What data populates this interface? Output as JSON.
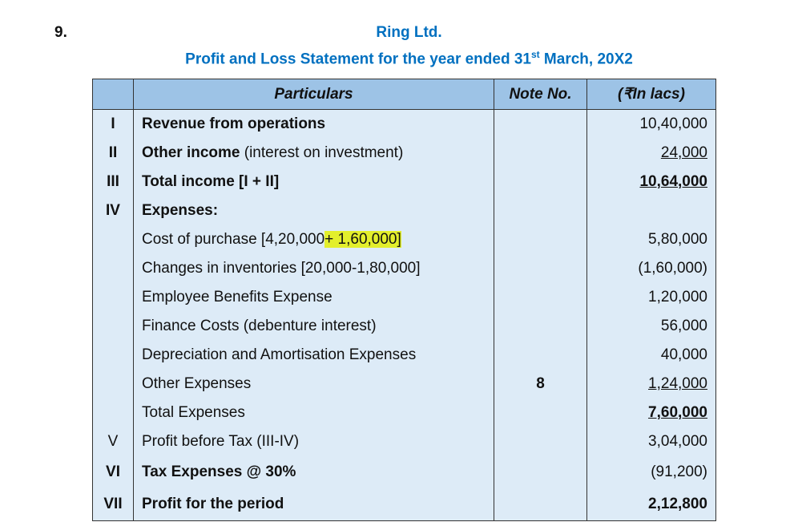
{
  "header": {
    "number": "9.",
    "company": "Ring Ltd.",
    "title": {
      "text": "Profit and Loss Statement for the year ended 31",
      "superscript": "st",
      "rest": " March, 20X2"
    }
  },
  "table": {
    "columns": [
      "Particulars",
      "Note No.",
      "(₹In lacs)"
    ],
    "rows": [
      {
        "num": "I",
        "particulars": "Revenue from operations",
        "amount": "10,40,000"
      },
      {
        "num": "II",
        "particulars": "Other income",
        "detail": " (interest on investment)",
        "amount": "24,000"
      },
      {
        "num": "III",
        "particulars": "Total income [I + II]",
        "amount": "10,64,000"
      },
      {
        "num": "IV",
        "particulars": "Expenses:"
      },
      {
        "particulars": "Cost of purchase [4,20,000",
        "highlight": "+ 1,60,000]",
        "amount": "5,80,000"
      },
      {
        "particulars": "Changes in inventories [20,000-1,80,000]",
        "amount": "(1,60,000)"
      },
      {
        "particulars": "Employee Benefits Expense",
        "amount": "1,20,000"
      },
      {
        "particulars": "Finance Costs (debenture interest)",
        "amount": "56,000"
      },
      {
        "particulars": "Depreciation and Amortisation Expenses",
        "amount": "40,000"
      },
      {
        "particulars": "Other Expenses",
        "note": "8",
        "amount": "1,24,000"
      },
      {
        "particulars": "Total Expenses",
        "amount": "7,60,000"
      },
      {
        "num": "V",
        "particulars": "Profit before Tax (III-IV)",
        "amount": "3,04,000"
      },
      {
        "num": "VI",
        "particulars": "Tax Expenses @ 30%",
        "amount": "(91,200)"
      },
      {
        "num": "VII",
        "particulars": "Profit for the period",
        "amount": "2,12,800"
      }
    ]
  }
}
